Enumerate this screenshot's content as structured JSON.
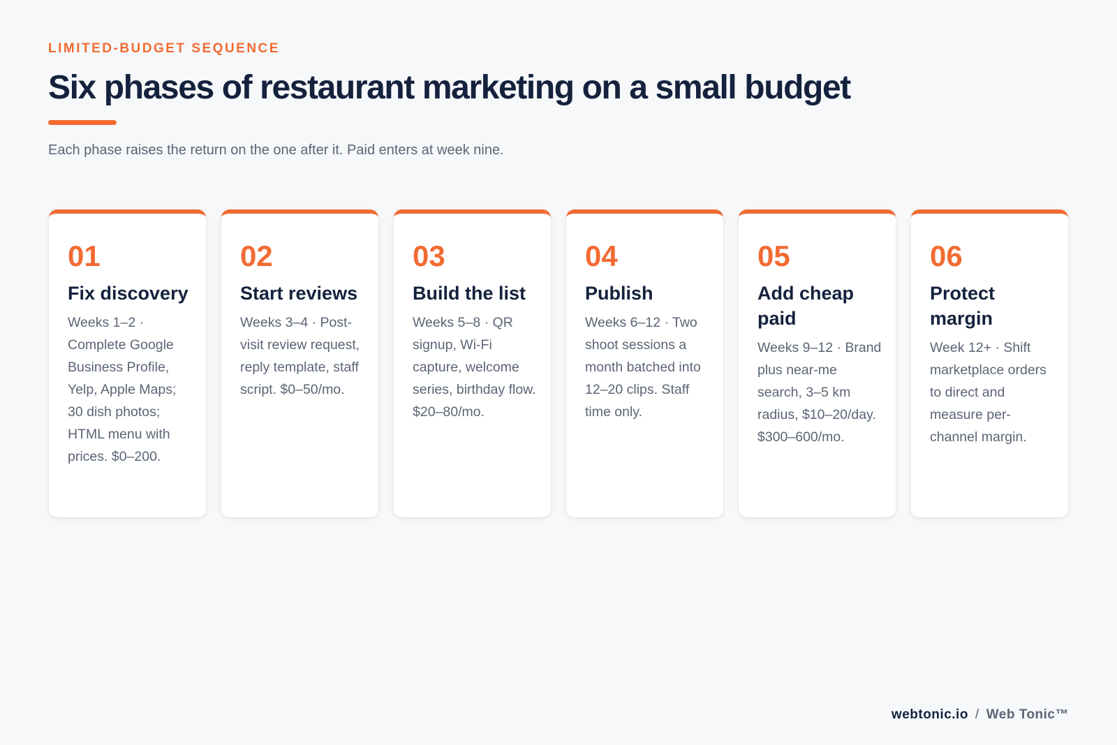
{
  "header": {
    "eyebrow": "LIMITED-BUDGET SEQUENCE",
    "title": "Six phases of restaurant marketing on a small budget",
    "subtitle": "Each phase raises the return on the one after it. Paid enters at week nine."
  },
  "phases": [
    {
      "number": "01",
      "title": "Fix discovery",
      "description": "Weeks 1–2 · Complete Google Business Profile, Yelp, Apple Maps; 30 dish photos; HTML menu with prices. $0–200."
    },
    {
      "number": "02",
      "title": "Start reviews",
      "description": "Weeks 3–4 · Post-visit review request, reply template, staff script. $0–50/mo."
    },
    {
      "number": "03",
      "title": "Build the list",
      "description": "Weeks 5–8 · QR signup, Wi-Fi capture, welcome series, birthday flow. $20–80/mo."
    },
    {
      "number": "04",
      "title": "Publish",
      "description": "Weeks 6–12 · Two shoot sessions a month batched into 12–20 clips. Staff time only."
    },
    {
      "number": "05",
      "title": "Add cheap paid",
      "description": "Weeks 9–12 · Brand plus near-me search, 3–5 km radius, $10–20/day. $300–600/mo."
    },
    {
      "number": "06",
      "title": "Protect margin",
      "description": "Week 12+ · Shift marketplace orders to direct and measure per-channel margin."
    }
  ],
  "footer": {
    "domain": "webtonic.io",
    "separator": "/",
    "brand": "Web Tonic™"
  },
  "colors": {
    "accent": "#f26b32",
    "heading": "#14223d",
    "body": "#5b6575",
    "background": "#f6f8fa"
  }
}
